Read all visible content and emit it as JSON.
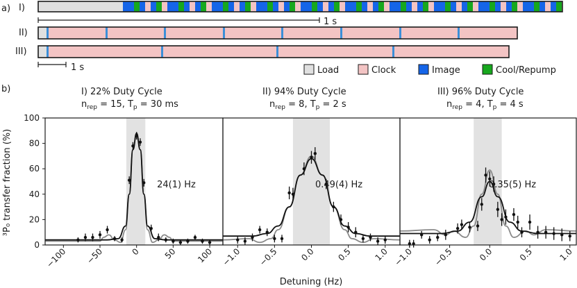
{
  "panel_a": {
    "label": "a)",
    "rows": [
      {
        "label": "I)"
      },
      {
        "label": "II)"
      },
      {
        "label": "III)"
      }
    ],
    "scale_1": "1 s",
    "scale_2": "1 s",
    "legend": [
      {
        "label": "Load",
        "color": "#e0e0e0"
      },
      {
        "label": "Clock",
        "color": "#f3c4c4"
      },
      {
        "label": "Image",
        "color": "#1565e8"
      },
      {
        "label": "Cool/Repump",
        "color": "#17a81e"
      }
    ]
  },
  "panel_b": {
    "label": "b)",
    "ylabel": "³P₀ transfer fraction (%)",
    "xlabel": "Detuning (Hz)"
  },
  "chart_data": [
    {
      "type": "scatter",
      "title": "I) 22%  Duty  Cycle",
      "subtitle": "n_rep = 15, T_p = 30 ms",
      "annotation": "24(1) Hz",
      "xlim": [
        -125,
        118
      ],
      "ylim": [
        0,
        100
      ],
      "xticks": [
        -100,
        -50,
        0,
        50,
        100
      ],
      "yticks": [
        0,
        20,
        40,
        60,
        80,
        100
      ],
      "shaded": [
        -14,
        12
      ],
      "points": [
        [
          -80,
          4,
          2
        ],
        [
          -70,
          6,
          3
        ],
        [
          -60,
          6,
          3
        ],
        [
          -50,
          8,
          3
        ],
        [
          -40,
          12,
          3
        ],
        [
          -30,
          5,
          2
        ],
        [
          -20,
          4,
          2
        ],
        [
          -10,
          51,
          3
        ],
        [
          -5,
          78,
          3
        ],
        [
          0,
          86,
          3
        ],
        [
          5,
          81,
          3
        ],
        [
          10,
          49,
          3
        ],
        [
          20,
          13,
          3
        ],
        [
          30,
          6,
          3
        ],
        [
          40,
          4,
          2
        ],
        [
          50,
          3,
          2
        ],
        [
          60,
          2,
          2
        ],
        [
          70,
          3,
          2
        ],
        [
          80,
          6,
          2
        ],
        [
          90,
          3,
          2
        ],
        [
          100,
          2,
          2
        ]
      ],
      "fit_black": [
        [
          -125,
          4
        ],
        [
          -40,
          4
        ],
        [
          -25,
          5
        ],
        [
          -15,
          15
        ],
        [
          -10,
          40
        ],
        [
          -5,
          75
        ],
        [
          0,
          88
        ],
        [
          5,
          75
        ],
        [
          10,
          40
        ],
        [
          15,
          15
        ],
        [
          25,
          5
        ],
        [
          40,
          4
        ],
        [
          118,
          4
        ]
      ],
      "fit_gray": [
        [
          -125,
          3
        ],
        [
          -50,
          3
        ],
        [
          -45,
          6
        ],
        [
          -38,
          8
        ],
        [
          -30,
          4
        ],
        [
          -22,
          2
        ],
        [
          -15,
          12
        ],
        [
          -10,
          40
        ],
        [
          -5,
          75
        ],
        [
          0,
          88
        ],
        [
          5,
          75
        ],
        [
          10,
          40
        ],
        [
          15,
          12
        ],
        [
          22,
          2
        ],
        [
          30,
          4
        ],
        [
          38,
          8
        ],
        [
          45,
          6
        ],
        [
          50,
          3
        ],
        [
          118,
          3
        ]
      ]
    },
    {
      "type": "scatter",
      "title": "II) 94%  Duty  Cycle",
      "subtitle": "n_rep = 8, T_p = 2 s",
      "annotation": "0.49(4) Hz",
      "xlim": [
        -1.2,
        1.2
      ],
      "ylim": [
        0,
        100
      ],
      "xticks": [
        -1.0,
        -0.5,
        0.0,
        0.5,
        1.0
      ],
      "shaded": [
        -0.25,
        0.25
      ],
      "points": [
        [
          -1.0,
          4,
          3
        ],
        [
          -0.9,
          3,
          3
        ],
        [
          -0.8,
          6,
          3
        ],
        [
          -0.7,
          12,
          3
        ],
        [
          -0.6,
          10,
          3
        ],
        [
          -0.5,
          5,
          3
        ],
        [
          -0.4,
          5,
          3
        ],
        [
          -0.3,
          41,
          5
        ],
        [
          -0.25,
          40,
          5
        ],
        [
          -0.1,
          60,
          5
        ],
        [
          0.0,
          69,
          5
        ],
        [
          0.05,
          72,
          5
        ],
        [
          0.2,
          48,
          4
        ],
        [
          0.3,
          30,
          4
        ],
        [
          0.4,
          20,
          4
        ],
        [
          0.5,
          14,
          4
        ],
        [
          0.6,
          10,
          4
        ],
        [
          0.7,
          5,
          3
        ],
        [
          0.8,
          6,
          3
        ],
        [
          0.9,
          3,
          3
        ],
        [
          1.0,
          4,
          3
        ]
      ],
      "fit_black": [
        [
          -1.2,
          7
        ],
        [
          -0.8,
          7
        ],
        [
          -0.6,
          9
        ],
        [
          -0.45,
          15
        ],
        [
          -0.3,
          30
        ],
        [
          -0.15,
          55
        ],
        [
          0,
          68
        ],
        [
          0.15,
          55
        ],
        [
          0.3,
          30
        ],
        [
          0.45,
          15
        ],
        [
          0.6,
          9
        ],
        [
          0.8,
          7
        ],
        [
          1.2,
          7
        ]
      ],
      "fit_gray": [
        [
          -1.2,
          4
        ],
        [
          -0.85,
          5
        ],
        [
          -0.7,
          2
        ],
        [
          -0.55,
          5
        ],
        [
          -0.45,
          12
        ],
        [
          -0.3,
          30
        ],
        [
          -0.15,
          55
        ],
        [
          0,
          70
        ],
        [
          0.15,
          55
        ],
        [
          0.3,
          30
        ],
        [
          0.45,
          12
        ],
        [
          0.55,
          5
        ],
        [
          0.7,
          2
        ],
        [
          0.85,
          5
        ],
        [
          1.2,
          4
        ]
      ]
    },
    {
      "type": "scatter",
      "title": "III) 96%  Duty  Cycle",
      "subtitle": "n_rep = 4, T_p = 4 s",
      "annotation": "0.35(5) Hz",
      "xlim": [
        -1.12,
        1.08
      ],
      "ylim": [
        0,
        100
      ],
      "xticks": [
        -1.0,
        -0.5,
        0.0,
        0.5,
        1.0
      ],
      "shaded": [
        -0.2,
        0.15
      ],
      "points": [
        [
          -1.0,
          1,
          3
        ],
        [
          -0.95,
          1,
          3
        ],
        [
          -0.85,
          8,
          3
        ],
        [
          -0.75,
          4,
          3
        ],
        [
          -0.65,
          6,
          3
        ],
        [
          -0.55,
          8,
          4
        ],
        [
          -0.4,
          13,
          4
        ],
        [
          -0.35,
          16,
          4
        ],
        [
          -0.25,
          14,
          4
        ],
        [
          -0.15,
          15,
          4
        ],
        [
          -0.1,
          32,
          5
        ],
        [
          -0.05,
          55,
          6
        ],
        [
          0.0,
          52,
          6
        ],
        [
          0.05,
          48,
          6
        ],
        [
          0.1,
          28,
          6
        ],
        [
          0.15,
          20,
          5
        ],
        [
          0.2,
          22,
          6
        ],
        [
          0.3,
          24,
          5
        ],
        [
          0.35,
          18,
          5
        ],
        [
          0.4,
          10,
          4
        ],
        [
          0.5,
          18,
          6
        ],
        [
          0.6,
          10,
          5
        ],
        [
          0.7,
          10,
          5
        ],
        [
          0.8,
          9,
          5
        ],
        [
          0.9,
          8,
          5
        ],
        [
          1.0,
          7,
          4
        ]
      ],
      "fit_black": [
        [
          -1.12,
          9
        ],
        [
          -0.6,
          9
        ],
        [
          -0.4,
          11
        ],
        [
          -0.25,
          18
        ],
        [
          -0.1,
          38
        ],
        [
          0,
          50
        ],
        [
          0.1,
          38
        ],
        [
          0.25,
          18
        ],
        [
          0.4,
          11
        ],
        [
          0.6,
          9
        ],
        [
          1.08,
          9
        ]
      ],
      "fit_gray": [
        [
          -1.12,
          11
        ],
        [
          -0.7,
          12
        ],
        [
          -0.55,
          8
        ],
        [
          -0.45,
          11
        ],
        [
          -0.3,
          6
        ],
        [
          -0.2,
          15
        ],
        [
          -0.1,
          40
        ],
        [
          0,
          59
        ],
        [
          0.1,
          40
        ],
        [
          0.2,
          15
        ],
        [
          0.3,
          6
        ],
        [
          0.45,
          11
        ],
        [
          0.55,
          8
        ],
        [
          0.7,
          12
        ],
        [
          1.08,
          11
        ]
      ]
    }
  ]
}
